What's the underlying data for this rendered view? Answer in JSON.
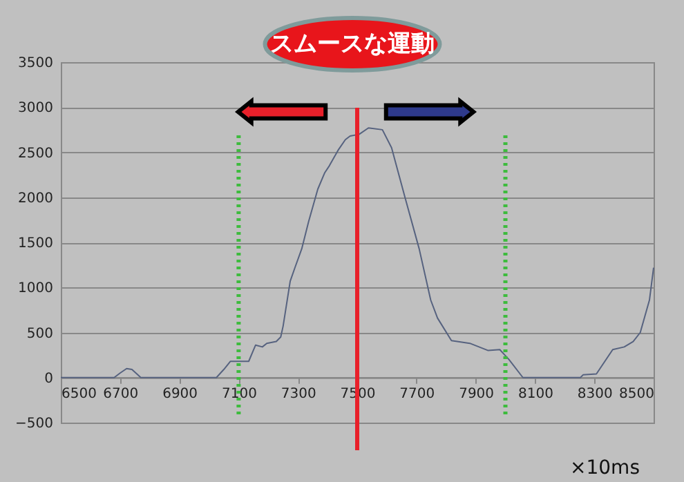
{
  "chart_data": {
    "type": "line",
    "x": [
      6500,
      6680,
      6700,
      6722,
      6740,
      6770,
      7025,
      7050,
      7072,
      7134,
      7157,
      7180,
      7195,
      7227,
      7242,
      7250,
      7274,
      7290,
      7313,
      7336,
      7367,
      7390,
      7406,
      7437,
      7460,
      7476,
      7507,
      7538,
      7585,
      7616,
      7662,
      7709,
      7748,
      7771,
      7818,
      7880,
      7942,
      7981,
      8012,
      8059,
      8253,
      8262,
      8307,
      8362,
      8401,
      8431,
      8455,
      8486,
      8500
    ],
    "series": [
      {
        "color": "#56627f",
        "values": [
          0,
          0,
          50,
          100,
          90,
          0,
          0,
          90,
          180,
          180,
          360,
          340,
          380,
          400,
          450,
          570,
          1070,
          1220,
          1430,
          1730,
          2090,
          2270,
          2350,
          2530,
          2640,
          2680,
          2700,
          2770,
          2750,
          2550,
          1990,
          1430,
          860,
          660,
          410,
          380,
          300,
          310,
          200,
          0,
          0,
          30,
          40,
          310,
          340,
          400,
          500,
          860,
          1220
        ]
      }
    ],
    "xlim": [
      6500,
      8500
    ],
    "xticks": [
      6500,
      6700,
      6900,
      7100,
      7300,
      7500,
      7700,
      7900,
      8100,
      8300,
      8500
    ],
    "ylim": [
      -500,
      3500
    ],
    "yticks": [
      -500,
      0,
      500,
      1000,
      1500,
      2000,
      2500,
      3000,
      3500
    ],
    "grid": "y",
    "marker": "none",
    "line_style": "solid",
    "xlabel": "×10ms",
    "annotations": [
      "スムースな運動"
    ],
    "ref_lines": [
      {
        "axis": "x",
        "value": 7100,
        "color": "#3dbb3d",
        "line_style": "dotted"
      },
      {
        "axis": "x",
        "value": 8000,
        "color": "#3dbb3d",
        "line_style": "dotted"
      },
      {
        "axis": "x",
        "value": 7500,
        "color": "#e8202a",
        "line_style": "solid"
      }
    ]
  }
}
